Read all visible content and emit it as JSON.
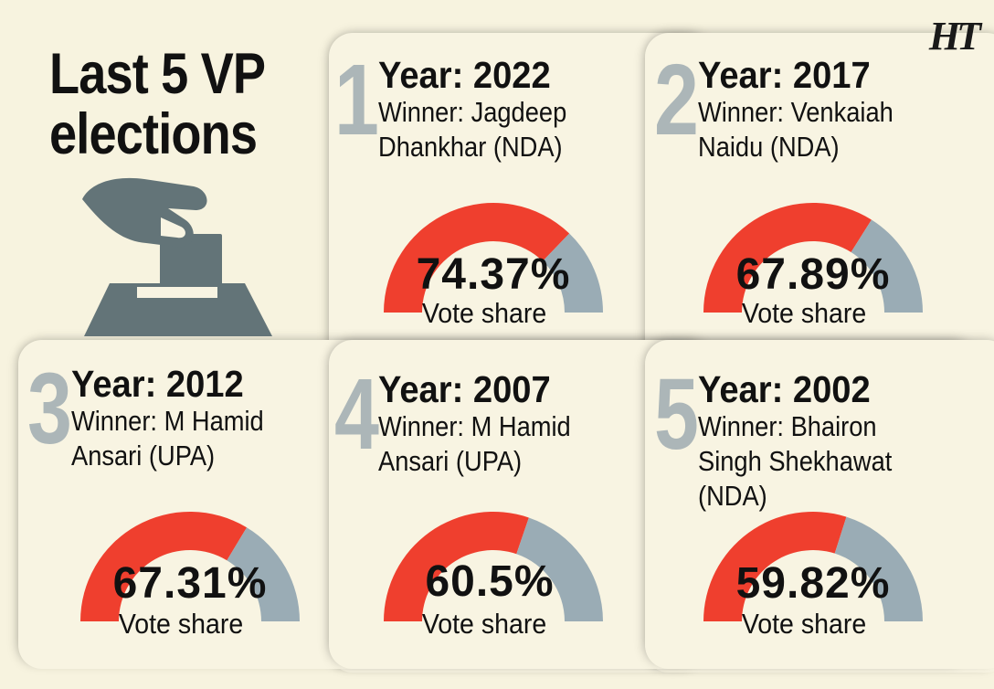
{
  "title": {
    "line1": "Last 5 VP",
    "line2": "elections"
  },
  "logo": "HT",
  "colors": {
    "winner": "#ef3f2e",
    "rest": "#9aacb5",
    "background": "#f7f3df",
    "icon": "#637478"
  },
  "vote_label": "Vote share",
  "chart_data": {
    "type": "gauge",
    "categories": [
      "2022",
      "2017",
      "2012",
      "2007",
      "2002"
    ],
    "values": [
      74.37,
      67.89,
      67.31,
      60.5,
      59.82
    ],
    "unit": "%"
  },
  "cards": [
    {
      "rank": "1",
      "year": "Year: 2022",
      "winner_lines": [
        "Winner: Jagdeep",
        "Dhankhar (NDA)"
      ],
      "percent": "74.37%",
      "value": 74.37
    },
    {
      "rank": "2",
      "year": "Year: 2017",
      "winner_lines": [
        "Winner: Venkaiah",
        "Naidu (NDA)"
      ],
      "percent": "67.89%",
      "value": 67.89
    },
    {
      "rank": "3",
      "year": "Year: 2012",
      "winner_lines": [
        "Winner: M Hamid",
        "Ansari (UPA)"
      ],
      "percent": "67.31%",
      "value": 67.31
    },
    {
      "rank": "4",
      "year": "Year: 2007",
      "winner_lines": [
        "Winner: M Hamid",
        "Ansari (UPA)"
      ],
      "percent": "60.5%",
      "value": 60.5
    },
    {
      "rank": "5",
      "year": "Year: 2002",
      "winner_lines": [
        "Winner: Bhairon",
        "Singh Shekhawat",
        "(NDA)"
      ],
      "percent": "59.82%",
      "value": 59.82
    }
  ]
}
